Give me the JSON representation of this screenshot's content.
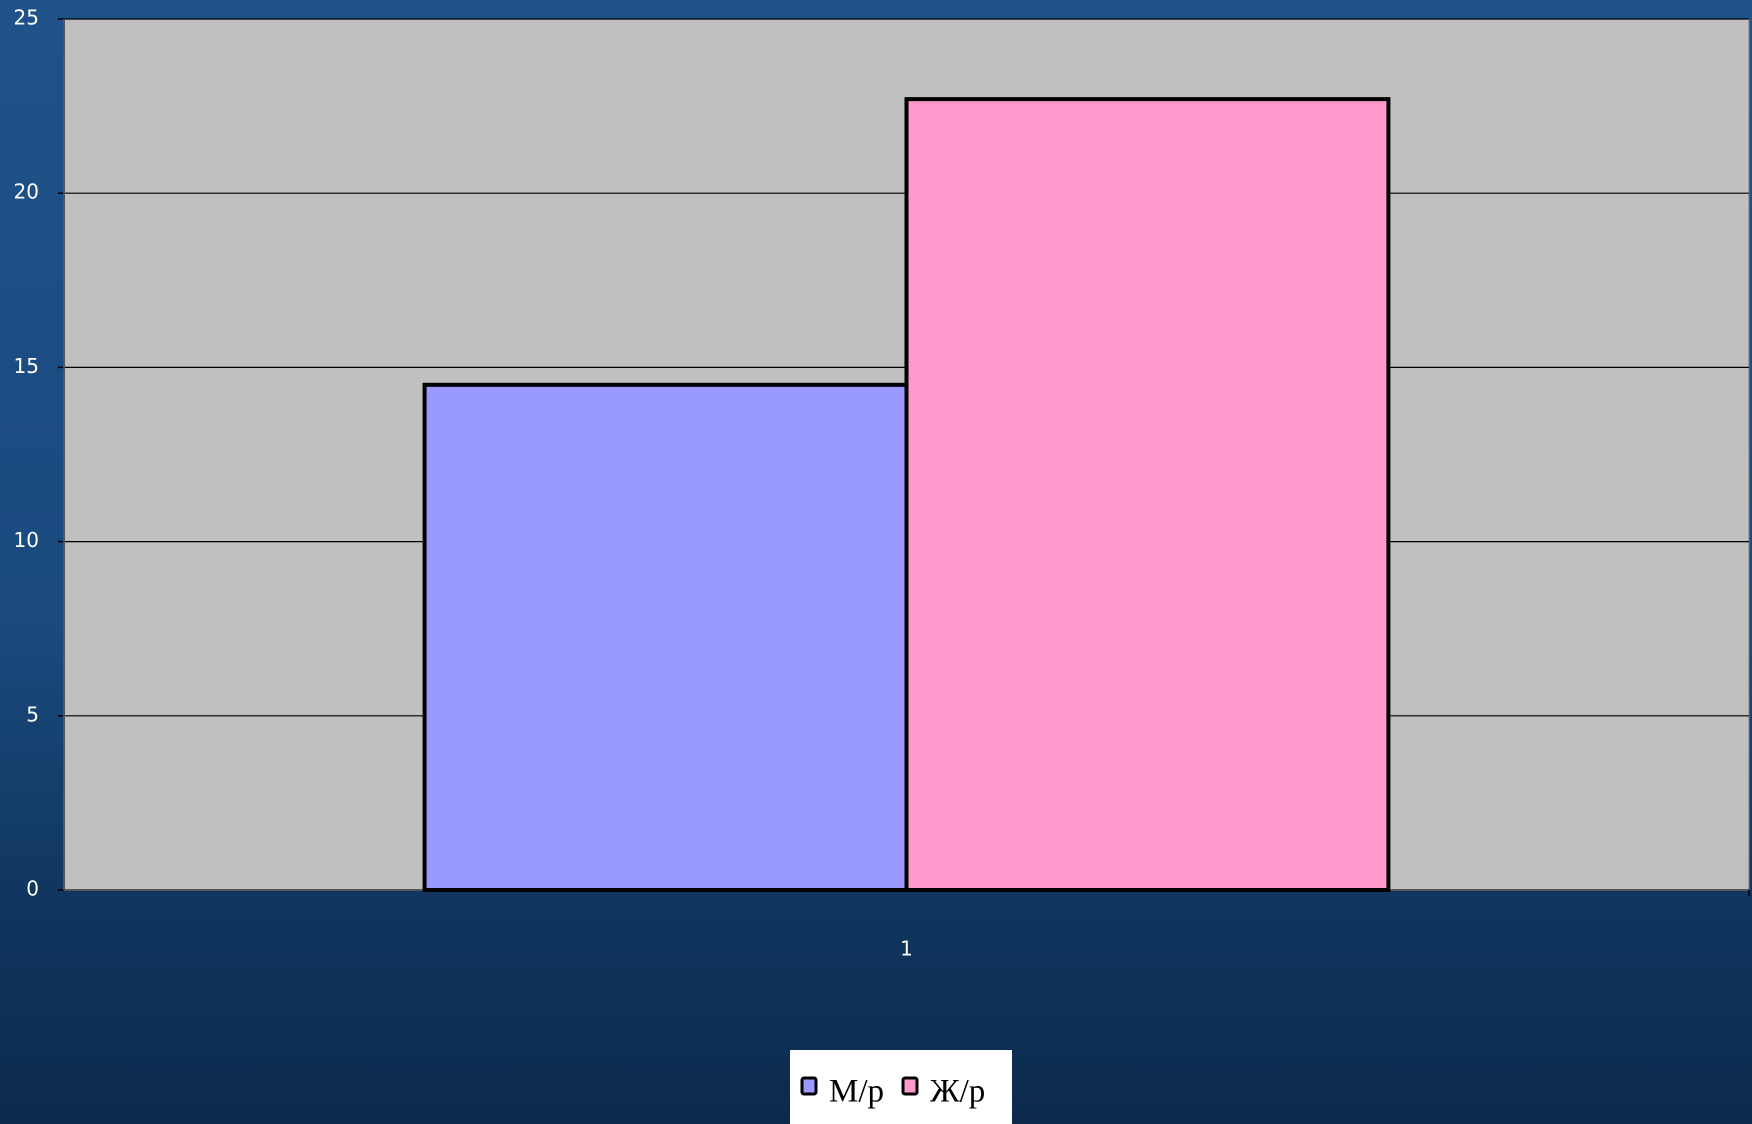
{
  "chart_data": {
    "type": "bar",
    "categories": [
      "1"
    ],
    "series": [
      {
        "name": "М/р",
        "color": "#9999ff",
        "values": [
          14.5
        ]
      },
      {
        "name": "Ж/р",
        "color": "#ff99cc",
        "values": [
          22.7
        ]
      }
    ],
    "ylim": [
      0,
      25
    ],
    "yticks": [
      0,
      5,
      10,
      15,
      20,
      25
    ],
    "grid": true,
    "legend": "bottom"
  }
}
